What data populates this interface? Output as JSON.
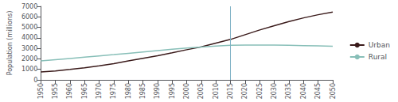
{
  "chart_data": {
    "type": "line",
    "title": "",
    "xlabel": "",
    "ylabel": "Population (millions)",
    "x": [
      1950,
      1955,
      1960,
      1965,
      1970,
      1975,
      1980,
      1985,
      1990,
      1995,
      2000,
      2005,
      2010,
      2015,
      2020,
      2025,
      2030,
      2035,
      2040,
      2045,
      2050
    ],
    "series": [
      {
        "name": "Urban",
        "color": "#3a1a1a",
        "values": [
          750,
          850,
          990,
          1150,
          1340,
          1550,
          1800,
          2050,
          2300,
          2570,
          2870,
          3150,
          3500,
          3850,
          4300,
          4750,
          5150,
          5550,
          5900,
          6200,
          6450
        ]
      },
      {
        "name": "Rural",
        "color": "#88bfb8",
        "values": [
          1800,
          1920,
          2040,
          2160,
          2280,
          2400,
          2530,
          2660,
          2790,
          2920,
          3030,
          3130,
          3220,
          3290,
          3320,
          3320,
          3310,
          3290,
          3260,
          3230,
          3190
        ]
      }
    ],
    "xlim": [
      1950,
      2050
    ],
    "xticks": [
      1950,
      1955,
      1960,
      1965,
      1970,
      1975,
      1980,
      1985,
      1990,
      1995,
      2000,
      2005,
      2010,
      2015,
      2020,
      2025,
      2030,
      2035,
      2040,
      2045,
      2050
    ],
    "ylim": [
      0,
      7000
    ],
    "yticks": [
      0,
      1000,
      2000,
      3000,
      4000,
      5000,
      6000,
      7000
    ],
    "vline": {
      "x": 2015,
      "color": "#7bafc4"
    },
    "grid": false,
    "legend": "right"
  }
}
